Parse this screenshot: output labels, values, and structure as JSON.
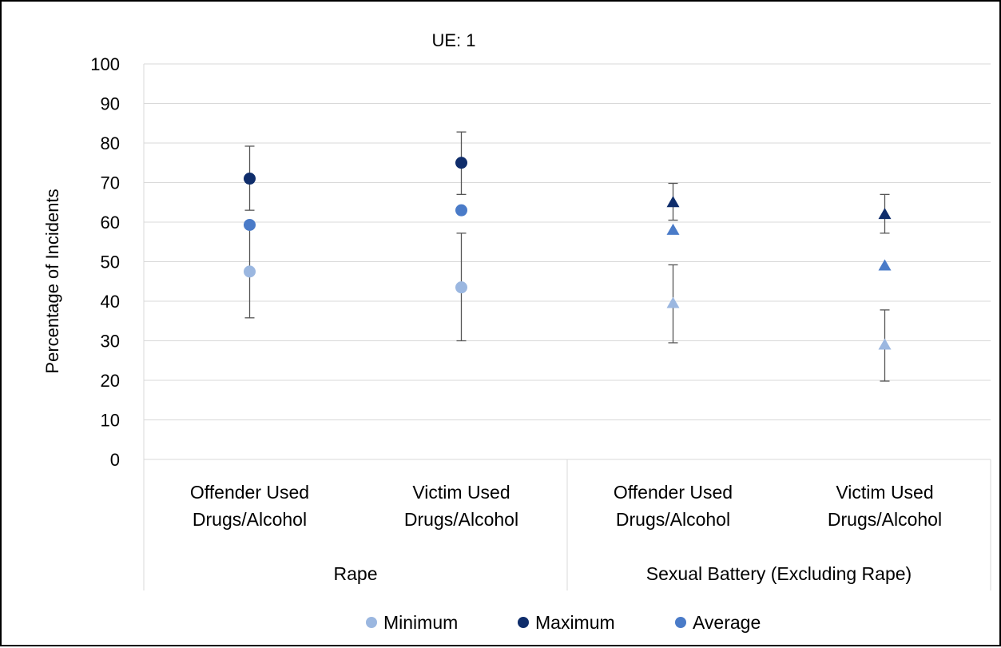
{
  "chart_data": {
    "type": "scatter",
    "title": "UE: 1",
    "ylabel": "Percentage of Incidents",
    "xlabel": "",
    "ylim": [
      0,
      100
    ],
    "yticks": [
      0,
      10,
      20,
      30,
      40,
      50,
      60,
      70,
      80,
      90,
      100
    ],
    "grid": true,
    "legend_position": "bottom",
    "groups": [
      {
        "label": "Rape",
        "marker": "circle",
        "categories": [
          {
            "label": [
              "Offender Used",
              "Drugs/Alcohol"
            ]
          },
          {
            "label": [
              "Victim Used",
              "Drugs/Alcohol"
            ]
          }
        ]
      },
      {
        "label": "Sexual Battery (Excluding Rape)",
        "marker": "triangle",
        "categories": [
          {
            "label": [
              "Offender Used",
              "Drugs/Alcohol"
            ]
          },
          {
            "label": [
              "Victim Used",
              "Drugs/Alcohol"
            ]
          }
        ]
      }
    ],
    "series": [
      {
        "name": "Minimum",
        "color": "#9bb7e0",
        "values": [
          47.5,
          43.5,
          39.5,
          29
        ],
        "error_low": [
          35.8,
          30,
          29.5,
          19.8
        ],
        "error_high": [
          59.2,
          57.2,
          49.2,
          37.8
        ]
      },
      {
        "name": "Maximum",
        "color": "#0f2d6b",
        "values": [
          71,
          75,
          65,
          62
        ],
        "error_low": [
          63,
          67,
          60.5,
          57.2
        ],
        "error_high": [
          79.2,
          82.8,
          69.8,
          67
        ]
      },
      {
        "name": "Average",
        "color": "#4a7bc8",
        "values": [
          59.3,
          63,
          58,
          49
        ],
        "error_low": [
          null,
          null,
          null,
          null
        ],
        "error_high": [
          null,
          null,
          null,
          null
        ]
      }
    ]
  }
}
